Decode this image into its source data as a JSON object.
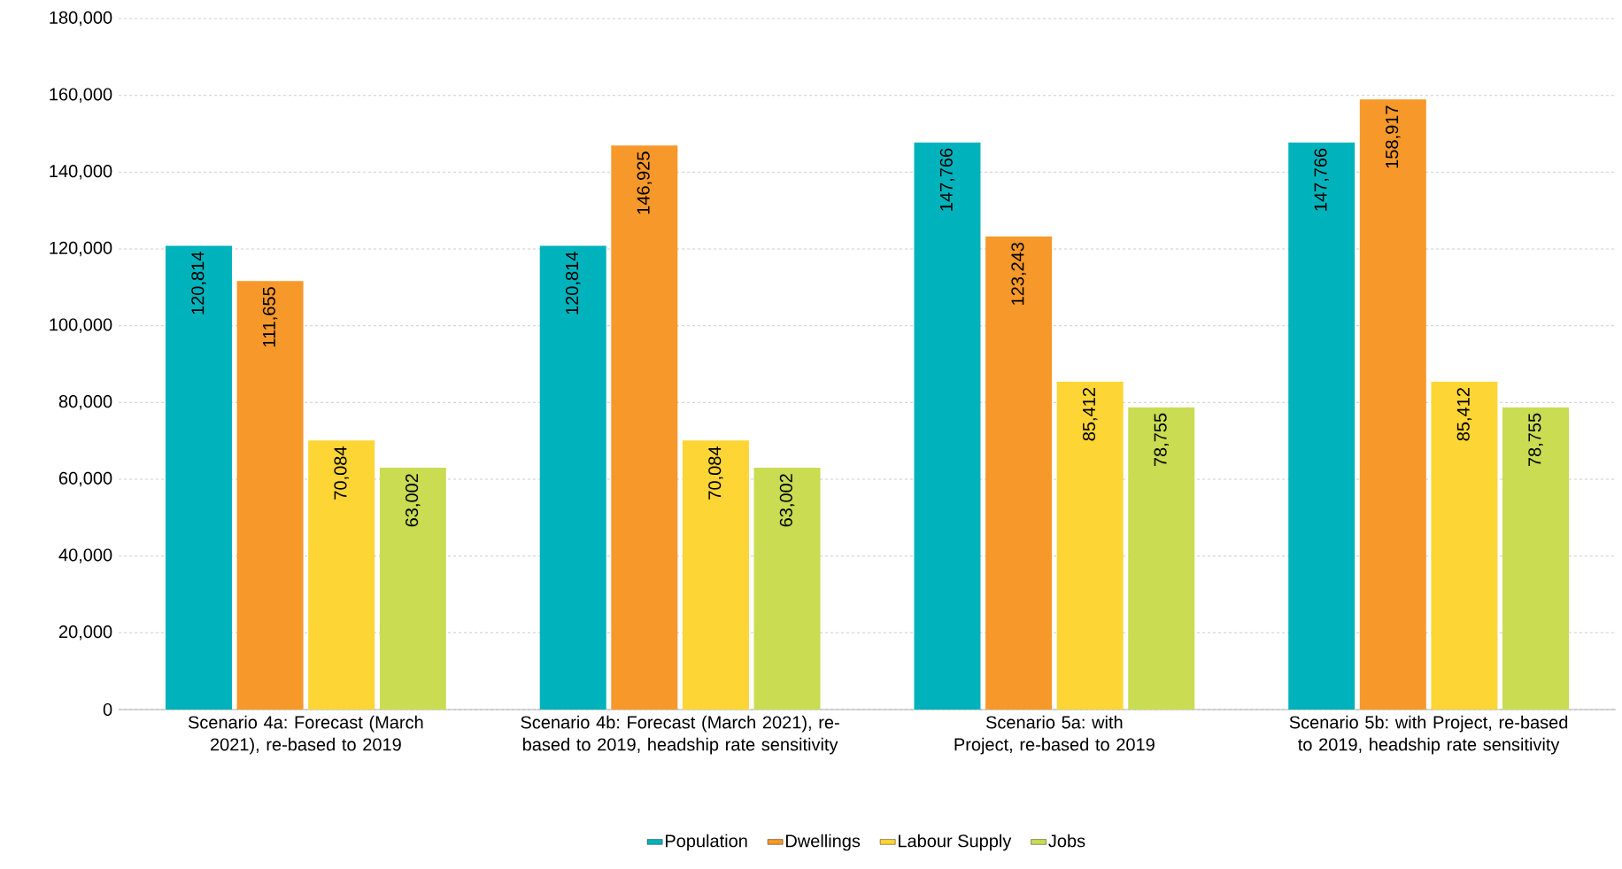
{
  "chart_data": {
    "type": "bar",
    "categories": [
      "Scenario 4a: Forecast (March 2021), re-based to 2019",
      "Scenario 4b: Forecast (March 2021), re-based to 2019, headship rate sensitivity",
      "Scenario 5a: with Project, re-based to 2019",
      "Scenario 5b: with Project, re-based to 2019, headship rate sensitivity"
    ],
    "series": [
      {
        "name": "Population",
        "color": "#00b2bb",
        "values": [
          120814,
          120814,
          147766,
          147766
        ],
        "value_labels": [
          "120,814",
          "120,814",
          "147,766",
          "147,766"
        ]
      },
      {
        "name": "Dwellings",
        "color": "#f7982a",
        "values": [
          111655,
          146925,
          123243,
          158917
        ],
        "value_labels": [
          "111,655",
          "146,925",
          "123,243",
          "158,917"
        ]
      },
      {
        "name": "Labour Supply",
        "color": "#fdd535",
        "values": [
          70084,
          70084,
          85412,
          85412
        ],
        "value_labels": [
          "70,084",
          "70,084",
          "85,412",
          "85,412"
        ]
      },
      {
        "name": "Jobs",
        "color": "#c9dc52",
        "values": [
          63002,
          63002,
          78755,
          78755
        ],
        "value_labels": [
          "63,002",
          "63,002",
          "78,755",
          "78,755"
        ]
      }
    ],
    "ylim": [
      0,
      180000
    ],
    "yticks": [
      {
        "value": 0,
        "label": "0"
      },
      {
        "value": 20000,
        "label": "20,000"
      },
      {
        "value": 40000,
        "label": "40,000"
      },
      {
        "value": 60000,
        "label": "60,000"
      },
      {
        "value": 80000,
        "label": "80,000"
      },
      {
        "value": 100000,
        "label": "100,000"
      },
      {
        "value": 120000,
        "label": "120,000"
      },
      {
        "value": 140000,
        "label": "140,000"
      },
      {
        "value": 160000,
        "label": "160,000"
      },
      {
        "value": 180000,
        "label": "180,000"
      }
    ],
    "grid": "y",
    "legend": "bottom"
  }
}
